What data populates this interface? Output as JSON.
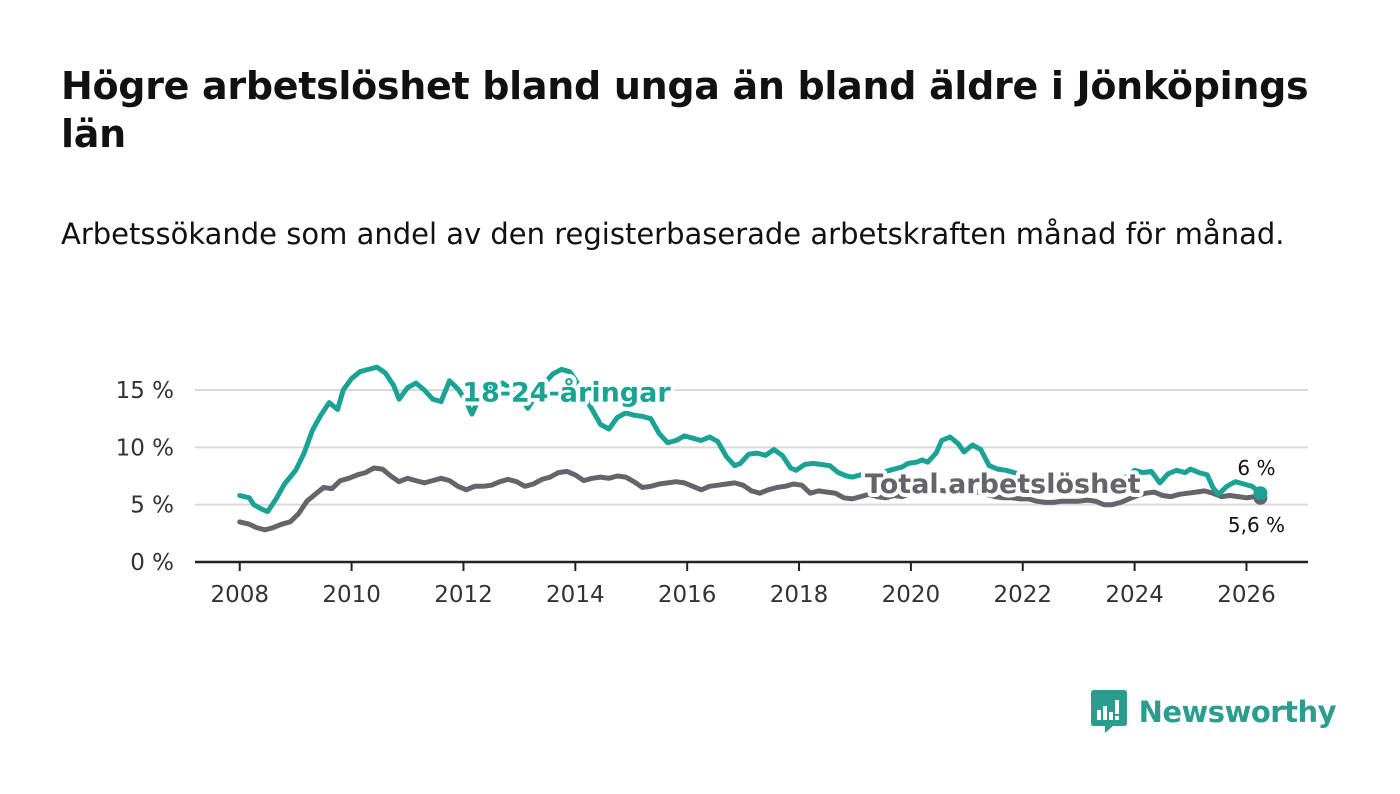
{
  "title": "Högre arbetslöshet bland unga än bland äldre i Jönköpings län",
  "subtitle": "Arbetssökande som andel av den registerbaserade arbetskraften månad för månad.",
  "brand": {
    "name": "Newsworthy",
    "color": "#2a9d8f"
  },
  "chart_data": {
    "type": "line",
    "title": "Högre arbetslöshet bland unga än bland äldre i Jönköpings län",
    "subtitle": "Arbetssökande som andel av den registerbaserade arbetskraften månad för månad.",
    "xlabel": "",
    "ylabel": "",
    "xlim": [
      2007.2,
      2027.1
    ],
    "ylim": [
      0,
      17
    ],
    "x_ticks": [
      {
        "value": 2008,
        "label": "2008"
      },
      {
        "value": 2010,
        "label": "2010"
      },
      {
        "value": 2012,
        "label": "2012"
      },
      {
        "value": 2014,
        "label": "2014"
      },
      {
        "value": 2016,
        "label": "2016"
      },
      {
        "value": 2018,
        "label": "2018"
      },
      {
        "value": 2020,
        "label": "2020"
      },
      {
        "value": 2022,
        "label": "2022"
      },
      {
        "value": 2024,
        "label": "2024"
      },
      {
        "value": 2026,
        "label": "2026"
      }
    ],
    "y_ticks": [
      {
        "value": 0,
        "label": "0 %"
      },
      {
        "value": 5,
        "label": "5 %"
      },
      {
        "value": 10,
        "label": "10 %"
      },
      {
        "value": 15,
        "label": "15 %"
      }
    ],
    "grid": true,
    "series": [
      {
        "name": "18-24-åringar",
        "color": "#1aa394",
        "label_at": {
          "x": 2012.3,
          "y": 14.8
        },
        "end_label": "6 %",
        "points": [
          [
            2008.0,
            5.8
          ],
          [
            2008.17,
            5.6
          ],
          [
            2008.25,
            5.0
          ],
          [
            2008.4,
            4.6
          ],
          [
            2008.5,
            4.4
          ],
          [
            2008.65,
            5.5
          ],
          [
            2008.8,
            6.8
          ],
          [
            2009.0,
            8.0
          ],
          [
            2009.15,
            9.5
          ],
          [
            2009.3,
            11.5
          ],
          [
            2009.45,
            12.8
          ],
          [
            2009.6,
            13.9
          ],
          [
            2009.75,
            13.3
          ],
          [
            2009.85,
            15.0
          ],
          [
            2010.0,
            16.0
          ],
          [
            2010.15,
            16.6
          ],
          [
            2010.3,
            16.8
          ],
          [
            2010.45,
            17.0
          ],
          [
            2010.6,
            16.5
          ],
          [
            2010.75,
            15.4
          ],
          [
            2010.85,
            14.2
          ],
          [
            2011.0,
            15.2
          ],
          [
            2011.15,
            15.6
          ],
          [
            2011.3,
            15.0
          ],
          [
            2011.45,
            14.2
          ],
          [
            2011.6,
            14.0
          ],
          [
            2011.75,
            15.8
          ],
          [
            2011.9,
            15.1
          ],
          [
            2012.05,
            14.0
          ],
          [
            2012.15,
            12.9
          ],
          [
            2012.3,
            14.5
          ],
          [
            2012.45,
            15.4
          ],
          [
            2012.55,
            15.0
          ],
          [
            2012.7,
            15.6
          ],
          [
            2012.85,
            15.1
          ],
          [
            2013.0,
            14.6
          ],
          [
            2013.15,
            13.4
          ],
          [
            2013.3,
            14.6
          ],
          [
            2013.45,
            15.6
          ],
          [
            2013.6,
            16.4
          ],
          [
            2013.75,
            16.8
          ],
          [
            2013.9,
            16.6
          ],
          [
            2014.0,
            15.9
          ],
          [
            2014.15,
            14.5
          ],
          [
            2014.3,
            13.3
          ],
          [
            2014.45,
            12.0
          ],
          [
            2014.6,
            11.6
          ],
          [
            2014.75,
            12.6
          ],
          [
            2014.9,
            13.0
          ],
          [
            2015.05,
            12.8
          ],
          [
            2015.2,
            12.7
          ],
          [
            2015.35,
            12.5
          ],
          [
            2015.5,
            11.2
          ],
          [
            2015.65,
            10.4
          ],
          [
            2015.8,
            10.6
          ],
          [
            2015.95,
            11.0
          ],
          [
            2016.1,
            10.8
          ],
          [
            2016.25,
            10.6
          ],
          [
            2016.4,
            10.9
          ],
          [
            2016.55,
            10.5
          ],
          [
            2016.7,
            9.2
          ],
          [
            2016.85,
            8.4
          ],
          [
            2016.95,
            8.6
          ],
          [
            2017.1,
            9.4
          ],
          [
            2017.25,
            9.5
          ],
          [
            2017.4,
            9.3
          ],
          [
            2017.55,
            9.8
          ],
          [
            2017.7,
            9.3
          ],
          [
            2017.85,
            8.2
          ],
          [
            2017.95,
            8.0
          ],
          [
            2018.1,
            8.5
          ],
          [
            2018.25,
            8.6
          ],
          [
            2018.4,
            8.5
          ],
          [
            2018.55,
            8.4
          ],
          [
            2018.7,
            7.8
          ],
          [
            2018.85,
            7.5
          ],
          [
            2018.95,
            7.4
          ],
          [
            2019.1,
            7.6
          ],
          [
            2019.25,
            7.8
          ],
          [
            2019.4,
            7.6
          ],
          [
            2019.55,
            7.9
          ],
          [
            2019.7,
            8.1
          ],
          [
            2019.85,
            8.3
          ],
          [
            2019.95,
            8.6
          ],
          [
            2020.1,
            8.7
          ],
          [
            2020.2,
            8.9
          ],
          [
            2020.3,
            8.7
          ],
          [
            2020.45,
            9.5
          ],
          [
            2020.55,
            10.6
          ],
          [
            2020.7,
            10.9
          ],
          [
            2020.85,
            10.3
          ],
          [
            2020.95,
            9.6
          ],
          [
            2021.1,
            10.2
          ],
          [
            2021.25,
            9.8
          ],
          [
            2021.4,
            8.4
          ],
          [
            2021.55,
            8.1
          ],
          [
            2021.7,
            8.0
          ],
          [
            2021.85,
            7.8
          ],
          [
            2022.0,
            7.5
          ],
          [
            2022.15,
            7.2
          ],
          [
            2022.3,
            7.0
          ],
          [
            2022.45,
            6.6
          ],
          [
            2022.6,
            6.8
          ],
          [
            2022.75,
            6.6
          ],
          [
            2022.9,
            6.9
          ],
          [
            2023.0,
            7.1
          ],
          [
            2023.15,
            7.2
          ],
          [
            2023.3,
            6.9
          ],
          [
            2023.4,
            6.0
          ],
          [
            2023.55,
            6.9
          ],
          [
            2023.7,
            7.3
          ],
          [
            2023.85,
            7.4
          ],
          [
            2024.0,
            8.0
          ],
          [
            2024.15,
            7.8
          ],
          [
            2024.3,
            7.9
          ],
          [
            2024.45,
            6.9
          ],
          [
            2024.6,
            7.7
          ],
          [
            2024.75,
            8.0
          ],
          [
            2024.9,
            7.8
          ],
          [
            2025.0,
            8.1
          ],
          [
            2025.15,
            7.8
          ],
          [
            2025.3,
            7.6
          ],
          [
            2025.4,
            6.5
          ],
          [
            2025.5,
            5.9
          ],
          [
            2025.65,
            6.6
          ],
          [
            2025.8,
            7.0
          ],
          [
            2025.95,
            6.8
          ],
          [
            2026.1,
            6.6
          ],
          [
            2026.25,
            6.0
          ]
        ]
      },
      {
        "name": "Total arbetslöshet",
        "color": "#66646a",
        "label_at": {
          "x": 2019.5,
          "y": 6.8
        },
        "end_label": "5,6 %",
        "points": [
          [
            2008.0,
            3.5
          ],
          [
            2008.17,
            3.3
          ],
          [
            2008.3,
            3.0
          ],
          [
            2008.45,
            2.8
          ],
          [
            2008.6,
            3.0
          ],
          [
            2008.75,
            3.3
          ],
          [
            2008.9,
            3.5
          ],
          [
            2009.05,
            4.2
          ],
          [
            2009.2,
            5.3
          ],
          [
            2009.35,
            5.9
          ],
          [
            2009.5,
            6.5
          ],
          [
            2009.65,
            6.4
          ],
          [
            2009.8,
            7.1
          ],
          [
            2009.95,
            7.3
          ],
          [
            2010.1,
            7.6
          ],
          [
            2010.25,
            7.8
          ],
          [
            2010.4,
            8.2
          ],
          [
            2010.55,
            8.1
          ],
          [
            2010.7,
            7.5
          ],
          [
            2010.85,
            7.0
          ],
          [
            2011.0,
            7.3
          ],
          [
            2011.15,
            7.1
          ],
          [
            2011.3,
            6.9
          ],
          [
            2011.45,
            7.1
          ],
          [
            2011.6,
            7.3
          ],
          [
            2011.75,
            7.1
          ],
          [
            2011.9,
            6.6
          ],
          [
            2012.05,
            6.3
          ],
          [
            2012.2,
            6.6
          ],
          [
            2012.35,
            6.6
          ],
          [
            2012.5,
            6.7
          ],
          [
            2012.65,
            7.0
          ],
          [
            2012.8,
            7.2
          ],
          [
            2012.95,
            7.0
          ],
          [
            2013.1,
            6.6
          ],
          [
            2013.25,
            6.8
          ],
          [
            2013.4,
            7.2
          ],
          [
            2013.55,
            7.4
          ],
          [
            2013.7,
            7.8
          ],
          [
            2013.85,
            7.9
          ],
          [
            2014.0,
            7.6
          ],
          [
            2014.15,
            7.1
          ],
          [
            2014.3,
            7.3
          ],
          [
            2014.45,
            7.4
          ],
          [
            2014.6,
            7.3
          ],
          [
            2014.75,
            7.5
          ],
          [
            2014.9,
            7.4
          ],
          [
            2015.05,
            7.0
          ],
          [
            2015.2,
            6.5
          ],
          [
            2015.35,
            6.6
          ],
          [
            2015.5,
            6.8
          ],
          [
            2015.65,
            6.9
          ],
          [
            2015.8,
            7.0
          ],
          [
            2015.95,
            6.9
          ],
          [
            2016.1,
            6.6
          ],
          [
            2016.25,
            6.3
          ],
          [
            2016.4,
            6.6
          ],
          [
            2016.55,
            6.7
          ],
          [
            2016.7,
            6.8
          ],
          [
            2016.85,
            6.9
          ],
          [
            2017.0,
            6.7
          ],
          [
            2017.15,
            6.2
          ],
          [
            2017.3,
            6.0
          ],
          [
            2017.45,
            6.3
          ],
          [
            2017.6,
            6.5
          ],
          [
            2017.75,
            6.6
          ],
          [
            2017.9,
            6.8
          ],
          [
            2018.05,
            6.7
          ],
          [
            2018.2,
            6.0
          ],
          [
            2018.35,
            6.2
          ],
          [
            2018.5,
            6.1
          ],
          [
            2018.65,
            6.0
          ],
          [
            2018.8,
            5.6
          ],
          [
            2018.95,
            5.5
          ],
          [
            2019.1,
            5.7
          ],
          [
            2019.25,
            5.9
          ],
          [
            2019.4,
            5.7
          ],
          [
            2019.55,
            5.6
          ],
          [
            2019.7,
            5.8
          ],
          [
            2019.85,
            5.7
          ],
          [
            2020.0,
            6.0
          ],
          [
            2020.15,
            6.1
          ],
          [
            2020.3,
            6.0
          ],
          [
            2020.45,
            6.3
          ],
          [
            2020.6,
            6.2
          ],
          [
            2020.75,
            6.4
          ],
          [
            2020.9,
            6.1
          ],
          [
            2021.05,
            6.0
          ],
          [
            2021.2,
            6.1
          ],
          [
            2021.35,
            5.9
          ],
          [
            2021.5,
            5.7
          ],
          [
            2021.65,
            5.6
          ],
          [
            2021.8,
            5.6
          ],
          [
            2021.95,
            5.5
          ],
          [
            2022.1,
            5.5
          ],
          [
            2022.25,
            5.3
          ],
          [
            2022.4,
            5.2
          ],
          [
            2022.55,
            5.2
          ],
          [
            2022.7,
            5.3
          ],
          [
            2022.85,
            5.3
          ],
          [
            2023.0,
            5.3
          ],
          [
            2023.15,
            5.4
          ],
          [
            2023.3,
            5.3
          ],
          [
            2023.45,
            5.0
          ],
          [
            2023.6,
            5.0
          ],
          [
            2023.75,
            5.2
          ],
          [
            2023.9,
            5.5
          ],
          [
            2024.05,
            5.8
          ],
          [
            2024.2,
            6.0
          ],
          [
            2024.35,
            6.1
          ],
          [
            2024.5,
            5.8
          ],
          [
            2024.65,
            5.7
          ],
          [
            2024.8,
            5.9
          ],
          [
            2024.95,
            6.0
          ],
          [
            2025.1,
            6.1
          ],
          [
            2025.25,
            6.2
          ],
          [
            2025.4,
            6.0
          ],
          [
            2025.55,
            5.7
          ],
          [
            2025.7,
            5.8
          ],
          [
            2025.85,
            5.7
          ],
          [
            2026.0,
            5.6
          ],
          [
            2026.15,
            5.7
          ],
          [
            2026.25,
            5.6
          ]
        ]
      }
    ]
  }
}
